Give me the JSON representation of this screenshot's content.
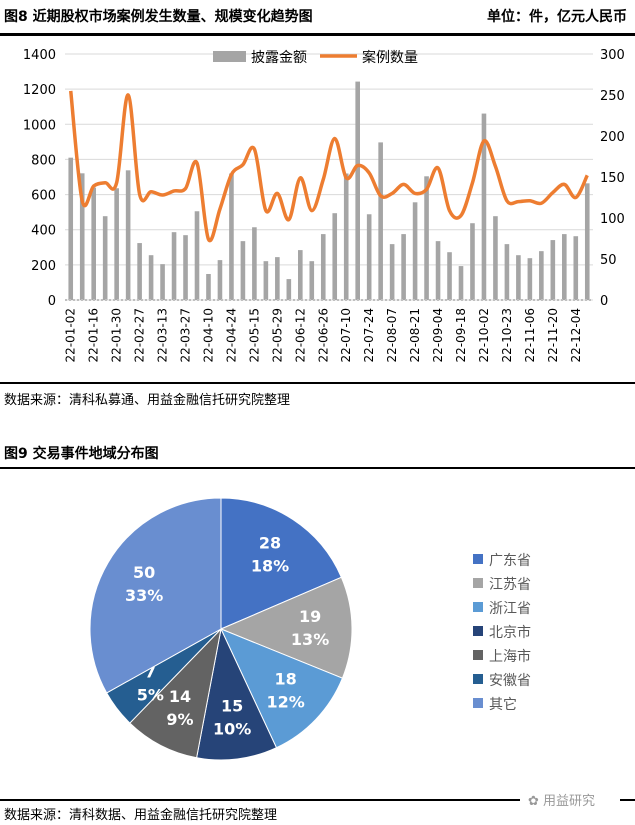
{
  "figure8": {
    "title": "图8 近期股权市场案例发生数量、规模变化趋势图",
    "unit": "单位：件，亿元人民币",
    "source": "数据来源：清科私募通、用益金融信托研究院整理"
  },
  "figure9": {
    "title": "图9 交易事件地域分布图",
    "source": "数据来源：清科数据、用益金融信托研究院整理"
  },
  "watermark": "用益研究",
  "chart_data": [
    {
      "type": "bar+line",
      "categories": [
        "22-01-02",
        "",
        "22-01-16",
        "",
        "22-01-30",
        "",
        "22-02-27",
        "",
        "22-03-13",
        "",
        "22-03-27",
        "",
        "22-04-10",
        "",
        "22-04-24",
        "",
        "22-05-15",
        "",
        "22-05-29",
        "",
        "22-06-12",
        "",
        "22-06-26",
        "",
        "22-07-10",
        "",
        "22-07-24",
        "",
        "22-08-07",
        "",
        "22-08-21",
        "",
        "22-09-04",
        "",
        "22-09-18",
        "",
        "22-10-02",
        "",
        "22-10-23",
        "",
        "22-11-06",
        "",
        "22-11-20",
        "",
        "22-12-04",
        ""
      ],
      "series": [
        {
          "name": "披露金额",
          "type": "bar",
          "axis": "left",
          "color": "#A5A5A5",
          "values": [
            810,
            721,
            640,
            477,
            636,
            738,
            324,
            255,
            204,
            386,
            369,
            505,
            148,
            227,
            720,
            335,
            414,
            221,
            244,
            119,
            284,
            221,
            375,
            494,
            720,
            1243,
            488,
            897,
            318,
            375,
            556,
            704,
            335,
            272,
            193,
            437,
            1061,
            477,
            318,
            255,
            238,
            278,
            341,
            375,
            363,
            664
          ]
        },
        {
          "name": "案例数量",
          "type": "line",
          "axis": "right",
          "color": "#ED7D31",
          "values": [
            255,
            121,
            139,
            143,
            143,
            250,
            129,
            132,
            128,
            133,
            136,
            167,
            74,
            111,
            153,
            165,
            184,
            109,
            130,
            98,
            149,
            109,
            147,
            197,
            149,
            164,
            155,
            127,
            130,
            141,
            130,
            135,
            161,
            109,
            103,
            143,
            194,
            163,
            121,
            120,
            121,
            118,
            131,
            141,
            125,
            152
          ]
        }
      ],
      "yleft": {
        "range": [
          0,
          1400
        ],
        "ticks": [
          0,
          200,
          400,
          600,
          800,
          1000,
          1200,
          1400
        ]
      },
      "yright": {
        "range": [
          0,
          300
        ],
        "ticks": [
          0,
          50,
          100,
          150,
          200,
          250,
          300
        ]
      },
      "grid": true,
      "legend": "top"
    },
    {
      "type": "pie",
      "slices": [
        {
          "label": "广东省",
          "value": 28,
          "pct": "18%",
          "color": "#4472C4"
        },
        {
          "label": "江苏省",
          "value": 19,
          "pct": "13%",
          "color": "#A5A5A5"
        },
        {
          "label": "浙江省",
          "value": 18,
          "pct": "12%",
          "color": "#5B9BD5"
        },
        {
          "label": "北京市",
          "value": 15,
          "pct": "10%",
          "color": "#264478"
        },
        {
          "label": "上海市",
          "value": 14,
          "pct": "9%",
          "color": "#636363"
        },
        {
          "label": "安徽省",
          "value": 7,
          "pct": "5%",
          "color": "#255E91"
        },
        {
          "label": "其它",
          "value": 50,
          "pct": "33%",
          "color": "#698ED0"
        }
      ],
      "legend": "right"
    }
  ]
}
